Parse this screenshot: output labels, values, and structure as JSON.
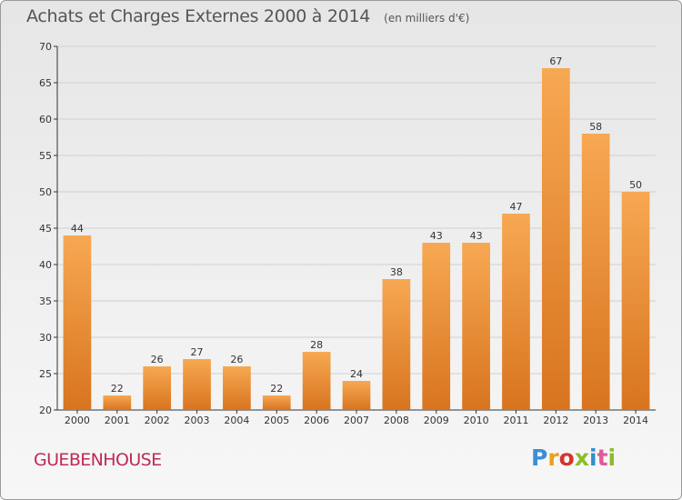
{
  "title": "Achats et Charges Externes 2000 à 2014",
  "unit": "(en milliers d'€)",
  "commune": "GUEBENHOUSE",
  "brand": {
    "letters": [
      "P",
      "r",
      "o",
      "x",
      "i",
      "t",
      "i"
    ],
    "colors": [
      "#3a8fd8",
      "#e8a020",
      "#d6342f",
      "#8bbd2a",
      "#2f8fd0",
      "#e05a9c",
      "#8bbd2a"
    ]
  },
  "chart_data": {
    "type": "bar",
    "title": "Achats et Charges Externes 2000 à 2014",
    "subtitle": "(en milliers d'€)",
    "categories": [
      "2000",
      "2001",
      "2002",
      "2003",
      "2004",
      "2005",
      "2006",
      "2007",
      "2008",
      "2009",
      "2010",
      "2011",
      "2012",
      "2013",
      "2014"
    ],
    "values": [
      44,
      22,
      26,
      27,
      26,
      22,
      28,
      24,
      38,
      43,
      43,
      47,
      67,
      58,
      50
    ],
    "ylim": [
      20,
      70
    ],
    "yticks": [
      20,
      25,
      30,
      35,
      40,
      45,
      50,
      55,
      60,
      65,
      70
    ],
    "xlabel": "",
    "ylabel": "",
    "grid": "horizontal",
    "bar_color": "#f0a050",
    "bar_color_dark": "#d8782a"
  }
}
